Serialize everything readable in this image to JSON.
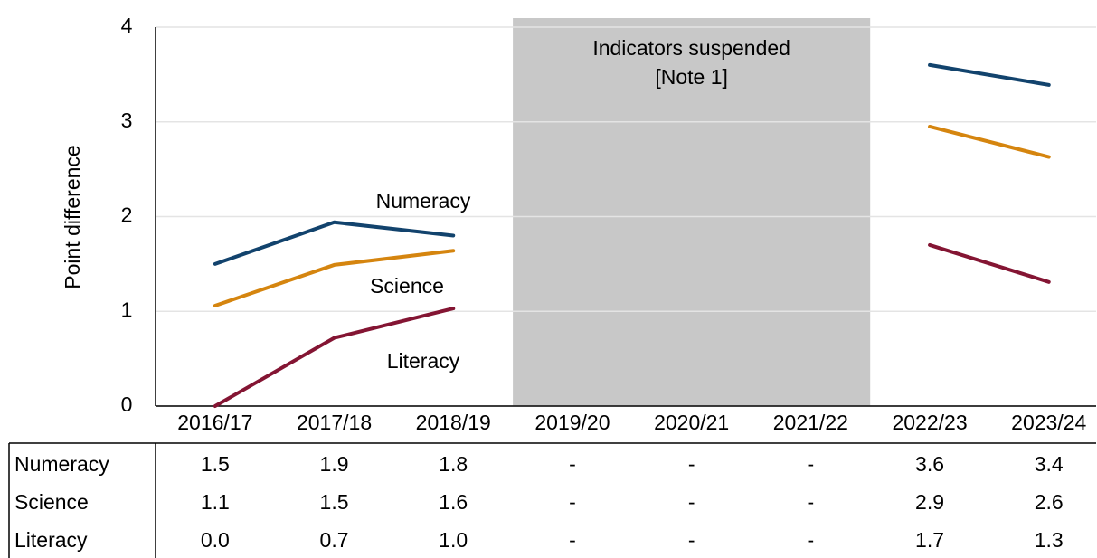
{
  "chart_data": {
    "type": "line",
    "y_label": "Point difference",
    "annotation": [
      "Indicators suspended",
      "[Note 1]"
    ],
    "categories": [
      "2016/17",
      "2017/18",
      "2018/19",
      "2019/20",
      "2020/21",
      "2021/22",
      "2022/23",
      "2023/24"
    ],
    "series": [
      {
        "name": "Numeracy",
        "color": "#12436d",
        "values": [
          1.5,
          1.94,
          1.8,
          null,
          null,
          null,
          3.6,
          3.39
        ],
        "value_labels": [
          "1.5",
          "1.9",
          "1.8",
          "-",
          "-",
          "-",
          "3.6",
          "3.4"
        ]
      },
      {
        "name": "Science",
        "color": "#d5850f",
        "values": [
          1.06,
          1.49,
          1.64,
          null,
          null,
          null,
          2.95,
          2.63
        ],
        "value_labels": [
          "1.1",
          "1.5",
          "1.6",
          "-",
          "-",
          "-",
          "2.9",
          "2.6"
        ]
      },
      {
        "name": "Literacy",
        "color": "#841533",
        "values": [
          0.0,
          0.72,
          1.03,
          null,
          null,
          null,
          1.7,
          1.31
        ],
        "value_labels": [
          "0.0",
          "0.7",
          "1.0",
          "-",
          "-",
          "-",
          "1.7",
          "1.3"
        ]
      }
    ],
    "ylim": [
      0,
      4
    ],
    "yticks": [
      0,
      1,
      2,
      3,
      4
    ],
    "grid": true
  }
}
